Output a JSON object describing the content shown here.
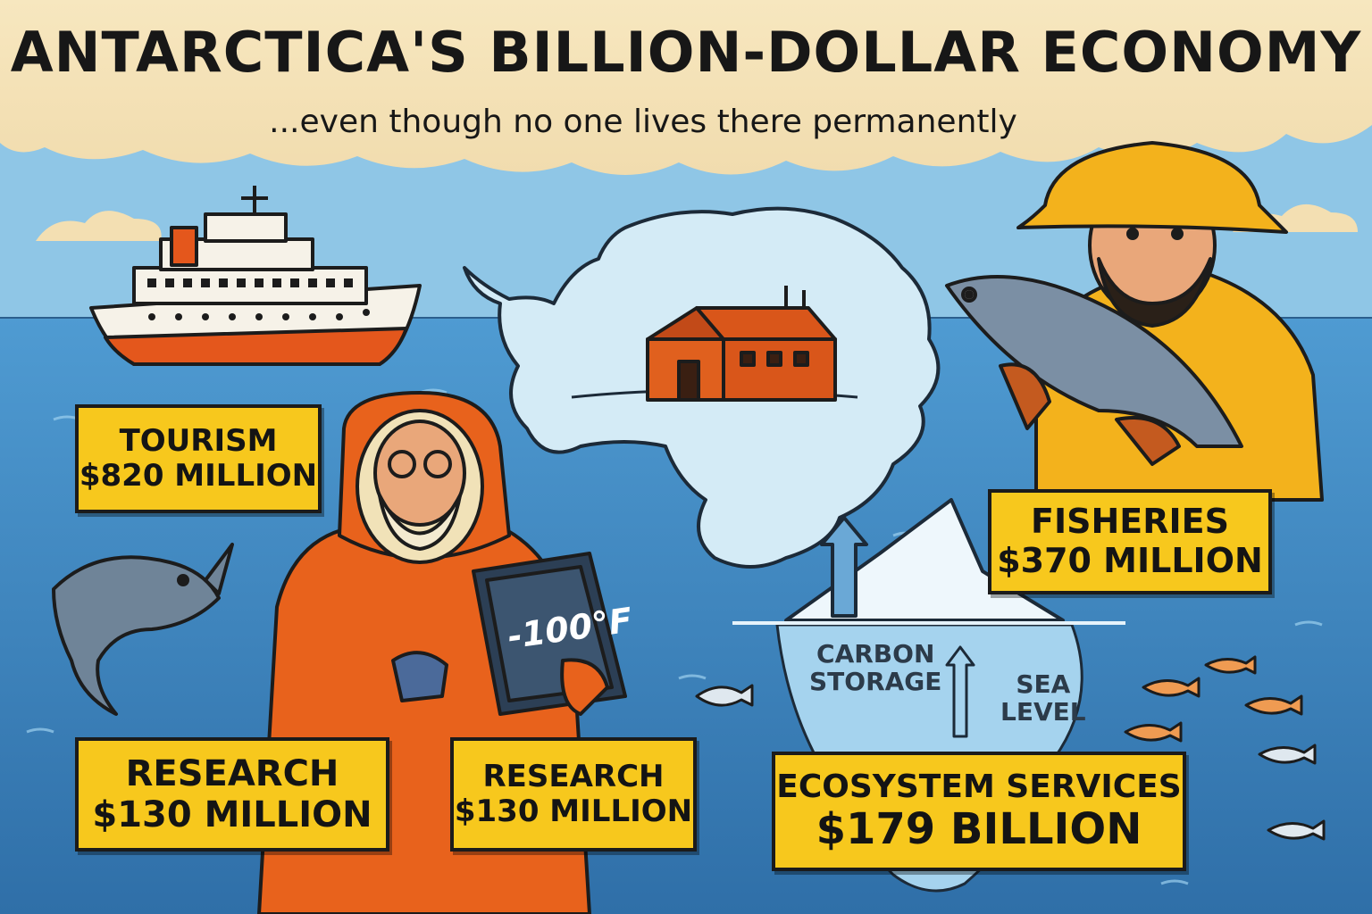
{
  "title": "ANTARCTICA'S BILLION-DOLLAR ECONOMY",
  "subtitle": "...even though no one lives there permanently",
  "labels": {
    "tourism": {
      "name": "TOURISM",
      "value": "$820 MILLION"
    },
    "research_left": {
      "name": "RESEARCH",
      "value": "$130 MILLION"
    },
    "research_right": {
      "name": "RESEARCH",
      "value": "$130 MILLION"
    },
    "fisheries": {
      "name": "FISHERIES",
      "value": "$370 MILLION"
    },
    "ecosystem": {
      "name": "ECOSYSTEM SERVICES",
      "value": "$179 BILLION"
    }
  },
  "iceberg_labels": {
    "carbon": "CARBON\nSTORAGE",
    "sea": "SEA\nLEVEL"
  },
  "tablet_reading": "-100°F",
  "colors": {
    "sky": "#f6e6bd",
    "ocean": "#3f86c0",
    "label_fill": "#f7c81d",
    "parka": "#e8621c",
    "raincoat": "#f3b21c",
    "ice": "#d4ebf6"
  },
  "icons": [
    "cruise-ship-icon",
    "research-station-icon",
    "fish-icon",
    "iceberg-icon",
    "arrow-up-icon"
  ]
}
